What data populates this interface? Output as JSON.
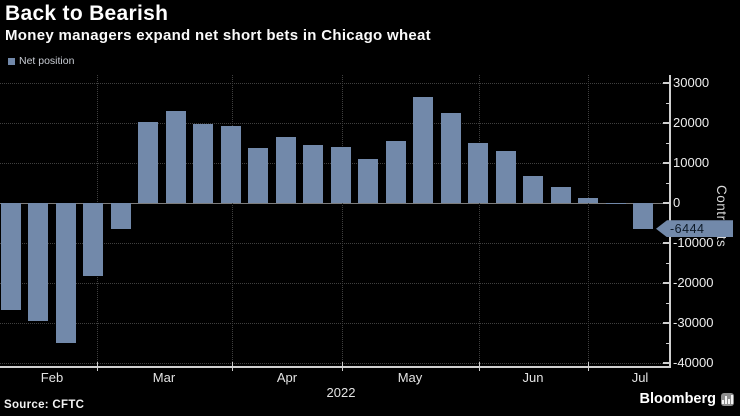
{
  "header": {
    "title": "Back to Bearish",
    "subtitle": "Money managers expand net short bets in Chicago wheat"
  },
  "legend": {
    "label": "Net position"
  },
  "footer": {
    "source": "Source: CFTC",
    "brand": "Bloomberg"
  },
  "chart_data": {
    "type": "bar",
    "title": "Back to Bearish",
    "subtitle": "Money managers expand net short bets in Chicago wheat",
    "series_name": "Net position",
    "values": [
      -26750,
      -29500,
      -34900,
      -18250,
      -6400,
      20250,
      23000,
      19800,
      19250,
      13800,
      16600,
      14500,
      14100,
      10900,
      15600,
      26600,
      22400,
      15100,
      12900,
      6750,
      3900,
      1200,
      100,
      -6444
    ],
    "x_tick_labels": [
      "Feb",
      "Mar",
      "Apr",
      "May",
      "Jun",
      "Jul"
    ],
    "bars_per_month": [
      4,
      5,
      4,
      5,
      4,
      2
    ],
    "year_label": "2022",
    "ylabel": "Contracts",
    "y_ticks": [
      30000,
      20000,
      10000,
      0,
      -10000,
      -20000,
      -30000,
      -40000
    ],
    "ylim": [
      -40750,
      32000
    ],
    "last_value_label": "-6444",
    "bar_color": "#7289aa",
    "background_color": "#000000",
    "badge_text_color": "#0d1a28",
    "grid": true,
    "legend_position": "top-left"
  }
}
